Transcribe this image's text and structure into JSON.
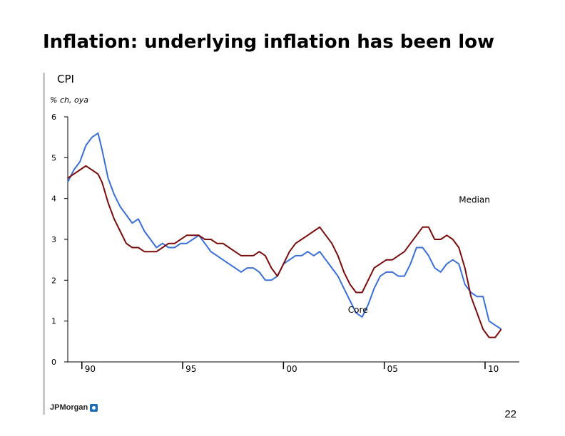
{
  "slide": {
    "title": "Inflation: underlying inflation has been low",
    "brand": "JPMorgan",
    "page_number": "22"
  },
  "colors": {
    "core": "#3a6fd8",
    "median": "#7a0c0c",
    "axis": "#000000"
  },
  "chart_data": {
    "type": "line",
    "title": "CPI",
    "subtitle": "% ch, oya",
    "xlabel": "",
    "ylabel": "",
    "xlim": [
      1989.3,
      2011.7
    ],
    "ylim": [
      0,
      6
    ],
    "y_ticks": [
      0,
      1,
      2,
      3,
      4,
      5,
      6
    ],
    "x_ticks": [
      {
        "value": 1990,
        "label": "90"
      },
      {
        "value": 1995,
        "label": "95"
      },
      {
        "value": 2000,
        "label": "00"
      },
      {
        "value": 2005,
        "label": "05"
      },
      {
        "value": 2010,
        "label": "10"
      }
    ],
    "grid": false,
    "series": [
      {
        "name": "Core",
        "color_key": "core",
        "label_text": "Core",
        "label_at": [
          2003.2,
          1.2
        ],
        "x": [
          1989.3,
          1989.6,
          1989.9,
          1990.2,
          1990.5,
          1990.8,
          1991.0,
          1991.3,
          1991.6,
          1991.9,
          1992.2,
          1992.5,
          1992.8,
          1993.1,
          1993.4,
          1993.7,
          1994.0,
          1994.3,
          1994.6,
          1994.9,
          1995.2,
          1995.5,
          1995.8,
          1996.1,
          1996.4,
          1996.7,
          1997.0,
          1997.3,
          1997.6,
          1997.9,
          1998.2,
          1998.5,
          1998.8,
          1999.1,
          1999.4,
          1999.7,
          2000.0,
          2000.3,
          2000.6,
          2000.9,
          2001.2,
          2001.5,
          2001.8,
          2002.1,
          2002.4,
          2002.7,
          2003.0,
          2003.3,
          2003.6,
          2003.9,
          2004.2,
          2004.5,
          2004.8,
          2005.1,
          2005.4,
          2005.7,
          2006.0,
          2006.3,
          2006.6,
          2006.9,
          2007.2,
          2007.5,
          2007.8,
          2008.1,
          2008.4,
          2008.7,
          2009.0,
          2009.3,
          2009.6,
          2009.9,
          2010.2,
          2010.5,
          2010.8
        ],
        "values": [
          4.4,
          4.7,
          4.9,
          5.3,
          5.5,
          5.6,
          5.2,
          4.5,
          4.1,
          3.8,
          3.6,
          3.4,
          3.5,
          3.2,
          3.0,
          2.8,
          2.9,
          2.8,
          2.8,
          2.9,
          2.9,
          3.0,
          3.1,
          2.9,
          2.7,
          2.6,
          2.5,
          2.4,
          2.3,
          2.2,
          2.3,
          2.3,
          2.2,
          2.0,
          2.0,
          2.1,
          2.4,
          2.5,
          2.6,
          2.6,
          2.7,
          2.6,
          2.7,
          2.5,
          2.3,
          2.1,
          1.8,
          1.5,
          1.2,
          1.1,
          1.4,
          1.8,
          2.1,
          2.2,
          2.2,
          2.1,
          2.1,
          2.4,
          2.8,
          2.8,
          2.6,
          2.3,
          2.2,
          2.4,
          2.5,
          2.4,
          1.9,
          1.7,
          1.6,
          1.6,
          1.0,
          0.9,
          0.8
        ]
      },
      {
        "name": "Median",
        "color_key": "median",
        "label_text": "Median",
        "label_at": [
          2008.7,
          3.9
        ],
        "x": [
          1989.3,
          1989.6,
          1989.9,
          1990.2,
          1990.5,
          1990.8,
          1991.0,
          1991.3,
          1991.6,
          1991.9,
          1992.2,
          1992.5,
          1992.8,
          1993.1,
          1993.4,
          1993.7,
          1994.0,
          1994.3,
          1994.6,
          1994.9,
          1995.2,
          1995.5,
          1995.8,
          1996.1,
          1996.4,
          1996.7,
          1997.0,
          1997.3,
          1997.6,
          1997.9,
          1998.2,
          1998.5,
          1998.8,
          1999.1,
          1999.4,
          1999.7,
          2000.0,
          2000.3,
          2000.6,
          2000.9,
          2001.2,
          2001.5,
          2001.8,
          2002.1,
          2002.4,
          2002.7,
          2003.0,
          2003.3,
          2003.6,
          2003.9,
          2004.2,
          2004.5,
          2004.8,
          2005.1,
          2005.4,
          2005.7,
          2006.0,
          2006.3,
          2006.6,
          2006.9,
          2007.2,
          2007.5,
          2007.8,
          2008.1,
          2008.4,
          2008.7,
          2009.0,
          2009.3,
          2009.6,
          2009.9,
          2010.2,
          2010.5,
          2010.8
        ],
        "values": [
          4.5,
          4.6,
          4.7,
          4.8,
          4.7,
          4.6,
          4.4,
          3.9,
          3.5,
          3.2,
          2.9,
          2.8,
          2.8,
          2.7,
          2.7,
          2.7,
          2.8,
          2.9,
          2.9,
          3.0,
          3.1,
          3.1,
          3.1,
          3.0,
          3.0,
          2.9,
          2.9,
          2.8,
          2.7,
          2.6,
          2.6,
          2.6,
          2.7,
          2.6,
          2.3,
          2.1,
          2.4,
          2.7,
          2.9,
          3.0,
          3.1,
          3.2,
          3.3,
          3.1,
          2.9,
          2.6,
          2.2,
          1.9,
          1.7,
          1.7,
          2.0,
          2.3,
          2.4,
          2.5,
          2.5,
          2.6,
          2.7,
          2.9,
          3.1,
          3.3,
          3.3,
          3.0,
          3.0,
          3.1,
          3.0,
          2.8,
          2.3,
          1.6,
          1.2,
          0.8,
          0.6,
          0.6,
          0.8
        ]
      }
    ]
  }
}
